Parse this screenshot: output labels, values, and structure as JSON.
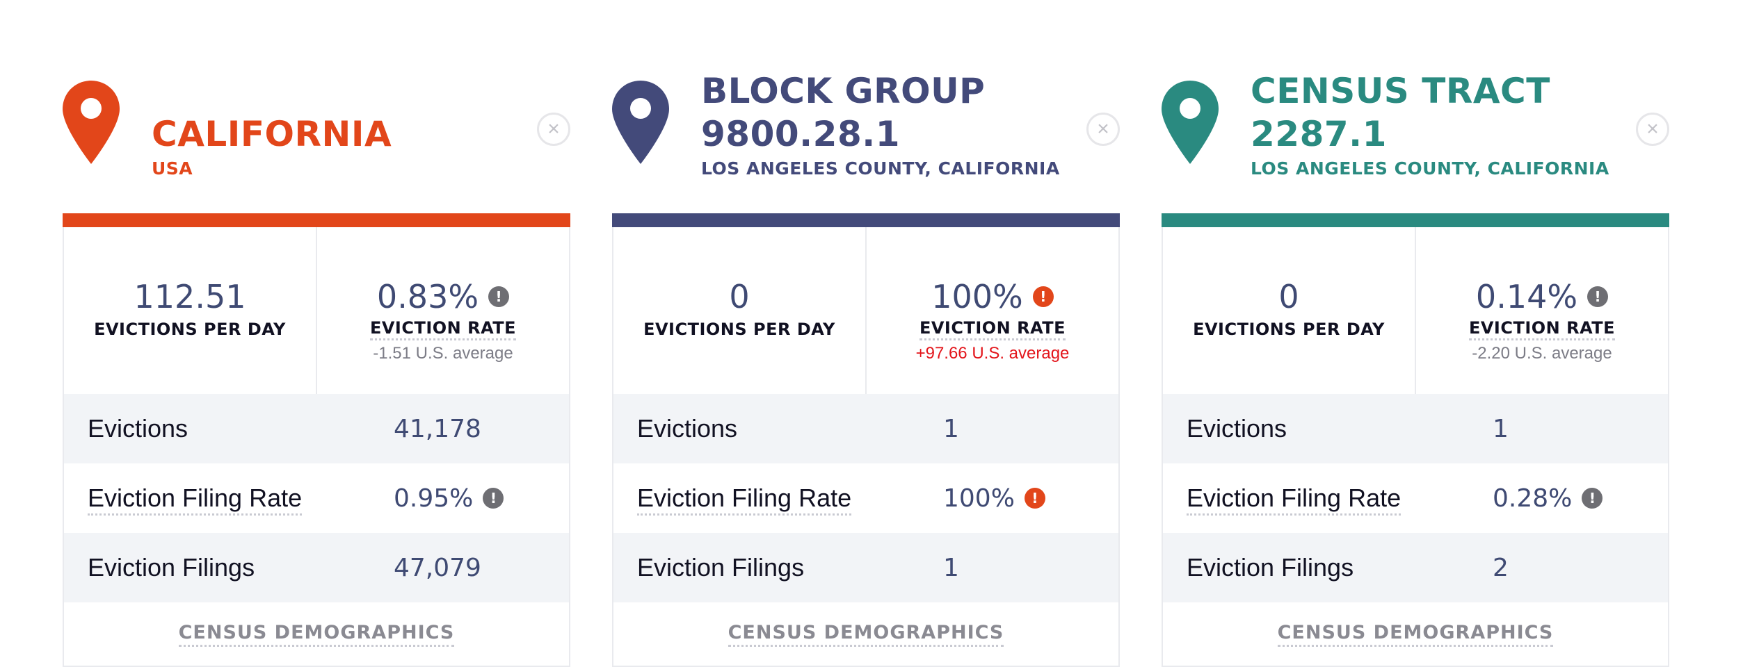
{
  "cards": [
    {
      "title": "CALIFORNIA",
      "title_lines": [
        "CALIFORNIA"
      ],
      "subtitle": "USA",
      "accent": "#e2461a",
      "pin_icon": "map-pin-icon",
      "close_icon": "close-icon",
      "close_glyph": "×",
      "stats": [
        {
          "value": "112.51",
          "label": "EVICTIONS PER DAY"
        },
        {
          "value": "0.83%",
          "label": "EVICTION RATE",
          "note": "-1.51 U.S. average",
          "note_color": "#7c7c86",
          "badge": "!",
          "badge_color": "#6e6e73"
        }
      ],
      "rows": [
        {
          "label": "Evictions",
          "value": "41,178"
        },
        {
          "label": "Eviction Filing Rate",
          "value": "0.95%",
          "badge": "!",
          "badge_color": "#6e6e73"
        },
        {
          "label": "Eviction Filings",
          "value": "47,079"
        }
      ],
      "demographics_link": "CENSUS DEMOGRAPHICS"
    },
    {
      "title": "BLOCK GROUP 9800.28.1",
      "title_lines": [
        "BLOCK GROUP",
        "9800.28.1"
      ],
      "subtitle": "LOS ANGELES COUNTY, CALIFORNIA",
      "accent": "#434a7a",
      "pin_icon": "map-pin-icon",
      "close_icon": "close-icon",
      "close_glyph": "×",
      "stats": [
        {
          "value": "0",
          "label": "EVICTIONS PER DAY"
        },
        {
          "value": "100%",
          "label": "EVICTION RATE",
          "note": "+97.66 U.S. average",
          "note_color": "#e3151b",
          "badge": "!",
          "badge_color": "#e2461a"
        }
      ],
      "rows": [
        {
          "label": "Evictions",
          "value": "1"
        },
        {
          "label": "Eviction Filing Rate",
          "value": "100%",
          "badge": "!",
          "badge_color": "#e2461a"
        },
        {
          "label": "Eviction Filings",
          "value": "1"
        }
      ],
      "demographics_link": "CENSUS DEMOGRAPHICS"
    },
    {
      "title": "CENSUS TRACT 2287.1",
      "title_lines": [
        "CENSUS TRACT",
        "2287.1"
      ],
      "subtitle": "LOS ANGELES COUNTY, CALIFORNIA",
      "accent": "#2a8a80",
      "pin_icon": "map-pin-icon",
      "close_icon": "close-icon",
      "close_glyph": "×",
      "stats": [
        {
          "value": "0",
          "label": "EVICTIONS PER DAY"
        },
        {
          "value": "0.14%",
          "label": "EVICTION RATE",
          "note": "-2.20 U.S. average",
          "note_color": "#7c7c86",
          "badge": "!",
          "badge_color": "#6e6e73"
        }
      ],
      "rows": [
        {
          "label": "Evictions",
          "value": "1"
        },
        {
          "label": "Eviction Filing Rate",
          "value": "0.28%",
          "badge": "!",
          "badge_color": "#6e6e73"
        },
        {
          "label": "Eviction Filings",
          "value": "2"
        }
      ],
      "demographics_link": "CENSUS DEMOGRAPHICS"
    }
  ]
}
